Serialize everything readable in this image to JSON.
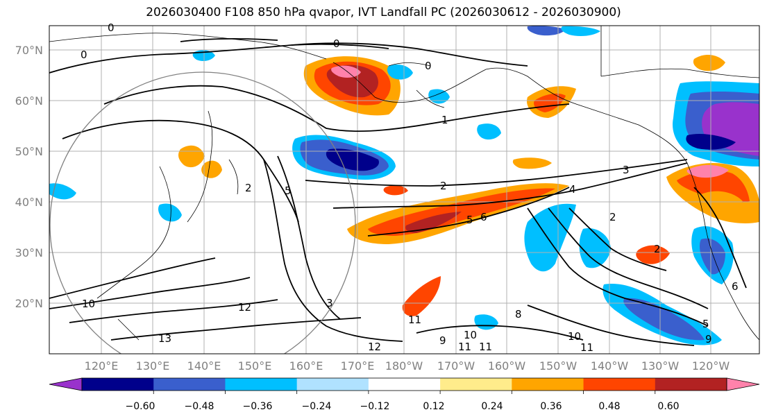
{
  "title": "2026030400 F108 850 hPa qvapor, IVT Landfall PC (2026030612 - 2026030900)",
  "map": {
    "lat_labels": [
      "70°N",
      "60°N",
      "50°N",
      "40°N",
      "30°N",
      "20°N"
    ],
    "lon_labels": [
      "120°E",
      "130°E",
      "140°E",
      "150°E",
      "160°E",
      "170°E",
      "180°W",
      "170°W",
      "160°W",
      "150°W",
      "140°W",
      "130°W",
      "120°W"
    ],
    "contour_labels": [
      "0",
      "0",
      "0",
      "0",
      "1",
      "2",
      "2",
      "3",
      "4",
      "5",
      "6",
      "2",
      "2",
      "3",
      "5",
      "10",
      "12",
      "13",
      "11",
      "10",
      "11",
      "11",
      "12",
      "9",
      "8",
      "10",
      "11",
      "9",
      "6",
      "5"
    ]
  },
  "colorbar": {
    "tick_labels": [
      "−0.60",
      "−0.48",
      "−0.36",
      "−0.24",
      "−0.12",
      "0.12",
      "0.24",
      "0.36",
      "0.48",
      "0.60"
    ],
    "colors": [
      "#9932cc",
      "#00008b",
      "#3a5fcd",
      "#00bfff",
      "#b0e2ff",
      "#ffffff",
      "#ffec8b",
      "#ffa500",
      "#ff4500",
      "#b22222",
      "#ff82ab"
    ]
  }
}
